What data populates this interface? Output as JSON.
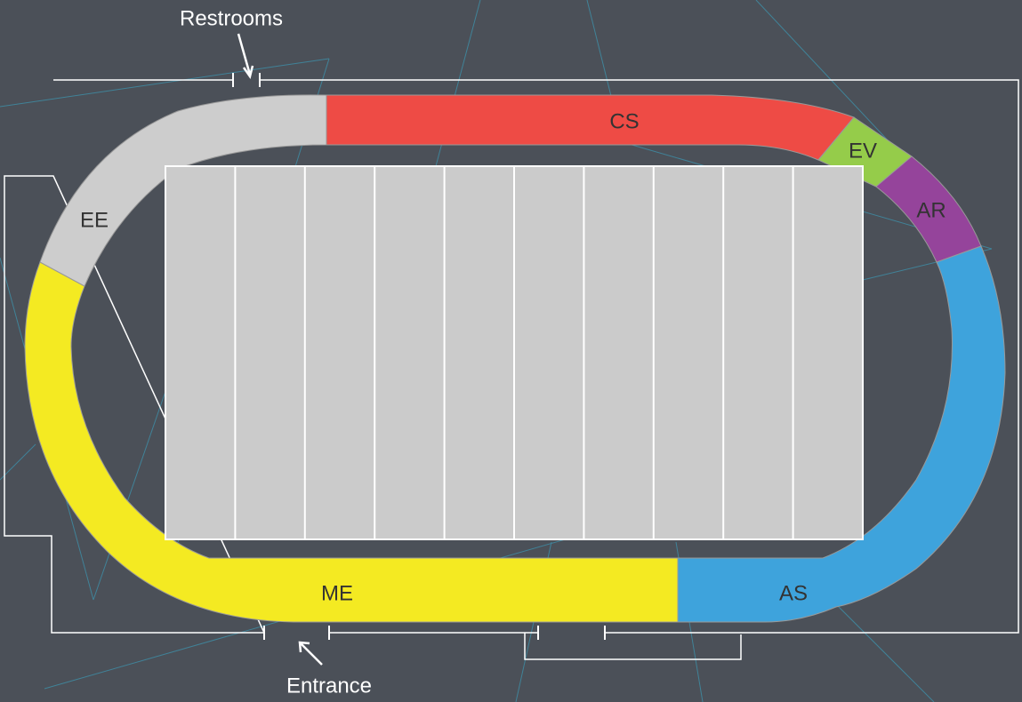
{
  "labels": {
    "restrooms": "Restrooms",
    "entrance": "Entrance"
  },
  "sections": [
    {
      "label": "CS",
      "color": "#ee4b45"
    },
    {
      "label": "EV",
      "color": "#95cc4a"
    },
    {
      "label": "AR",
      "color": "#95449b"
    },
    {
      "label": "AS",
      "color": "#3ea3dc"
    },
    {
      "label": "ME",
      "color": "#f4ea22"
    },
    {
      "label": "EE",
      "color": "#cdcdcd"
    }
  ]
}
